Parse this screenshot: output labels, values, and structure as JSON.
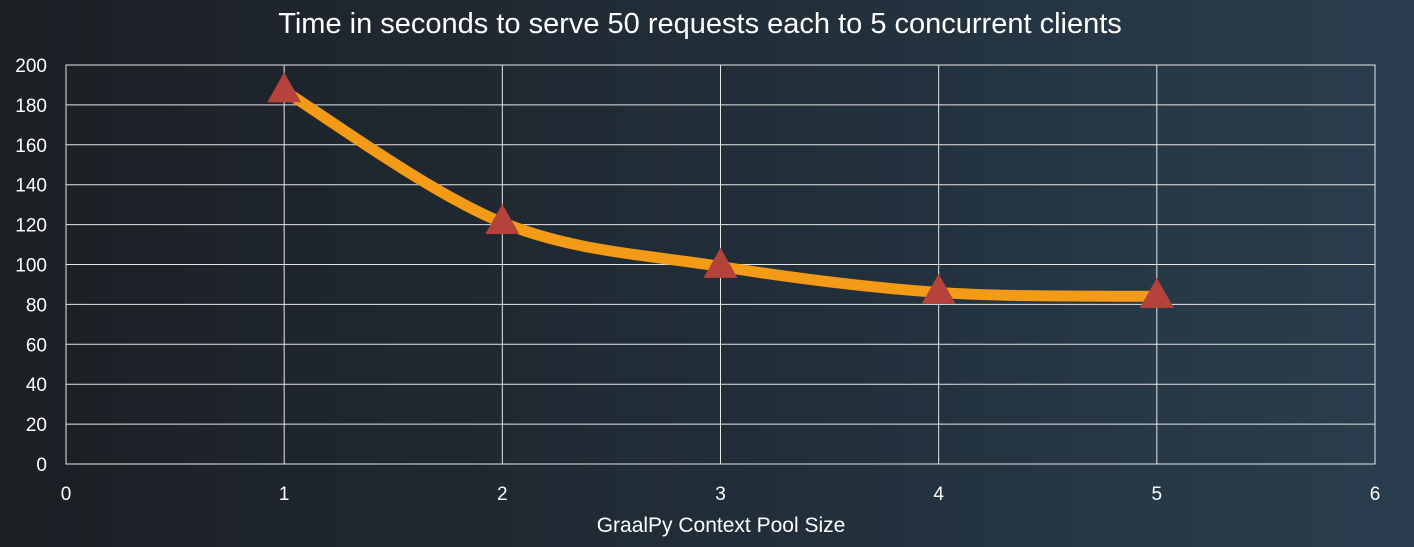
{
  "chart_data": {
    "type": "line",
    "title": "Time in seconds to serve 50 requests each to 5 concurrent clients",
    "xlabel": "GraalPy Context Pool Size",
    "ylabel": "",
    "xlim": [
      0,
      6
    ],
    "ylim": [
      0,
      200
    ],
    "x_ticks": [
      "0",
      "1",
      "2",
      "3",
      "4",
      "5",
      "6"
    ],
    "y_ticks": [
      "0",
      "20",
      "40",
      "60",
      "80",
      "100",
      "120",
      "140",
      "160",
      "180",
      "200"
    ],
    "grid": true,
    "smooth": true,
    "series": [
      {
        "x": [
          1,
          2,
          3,
          4,
          5
        ],
        "values": [
          187,
          121,
          99,
          86,
          84
        ],
        "line_color": "#f39a16",
        "marker": "triangle",
        "marker_color": "#b5433c"
      }
    ]
  }
}
